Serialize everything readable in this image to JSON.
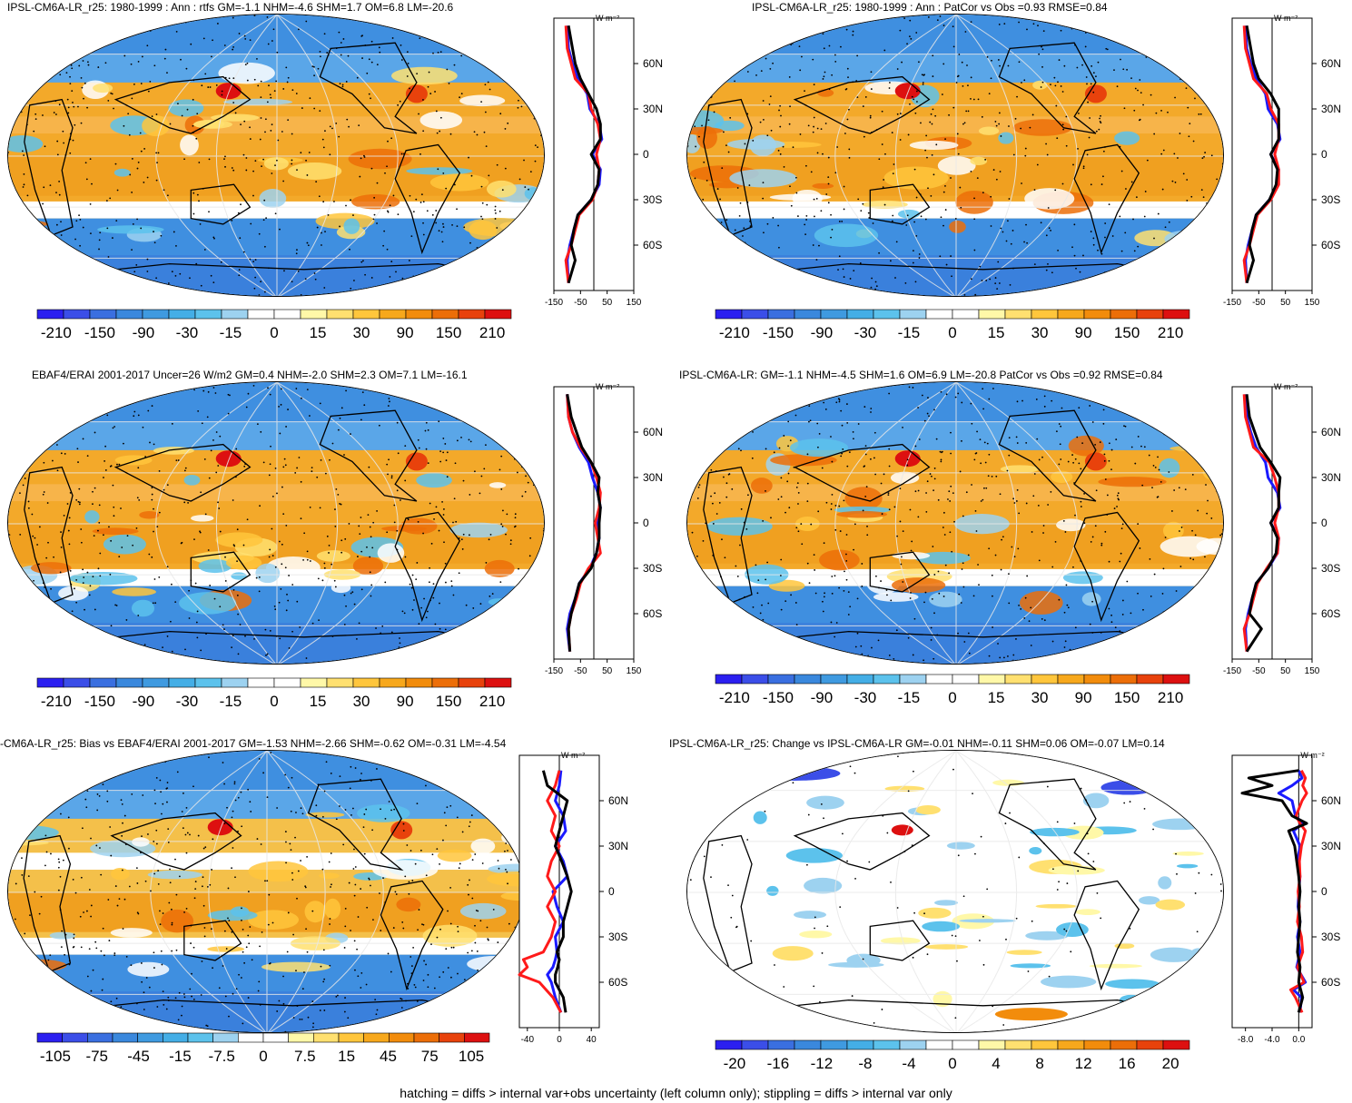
{
  "footer": "hatching = diffs > internal var+obs uncertainty (left column only); stippling = diffs > internal var only",
  "colors": {
    "cold": [
      "#2b1ff0",
      "#3b4ee8",
      "#3a6fe0",
      "#3a88dd",
      "#3f9ae0",
      "#44aee6",
      "#5cc2ec",
      "#9dd2f0",
      "#ffffff"
    ],
    "warm": [
      "#ffffff",
      "#fff8a8",
      "#ffe070",
      "#ffc63c",
      "#f7a81c",
      "#f28c0c",
      "#ec6e08",
      "#e8420c",
      "#dd1010"
    ],
    "model_line": "#000000",
    "obs_line": "#ff1a1a",
    "alt_line": "#1a1aff"
  },
  "panels": [
    {
      "id": "p1",
      "title": "IPSL-CM6A-LR_r25: 1980-1999 : Ann : rtfs GM=-1.1 NHM=-4.6 SHM=1.7 OM=6.8 LM=-20.6",
      "unit": "W m⁻²",
      "cbar_labels": [
        "-210",
        "-150",
        "-90",
        "-30",
        "-15",
        "0",
        "15",
        "30",
        "90",
        "150",
        "210"
      ],
      "profile_xticks": [
        "-150",
        "-50",
        "50",
        "150"
      ],
      "profile_xlim": [
        -150,
        150
      ],
      "lat_labels": [
        "60N",
        "30N",
        "0",
        "30S",
        "60S"
      ],
      "chart_data": {
        "type": "line",
        "x_quantity": "zonal mean (W m-2)",
        "lat": [
          -85,
          -70,
          -60,
          -50,
          -40,
          -30,
          -20,
          -10,
          0,
          10,
          20,
          30,
          40,
          50,
          60,
          70,
          85
        ],
        "series": [
          {
            "values": [
              -95,
              -100,
              -90,
              -75,
              -60,
              -10,
              20,
              25,
              -5,
              30,
              20,
              -15,
              -25,
              -60,
              -80,
              -95,
              -100
            ]
          },
          {
            "values": [
              -95,
              -105,
              -85,
              -70,
              -55,
              -5,
              15,
              20,
              10,
              25,
              15,
              -10,
              -20,
              -70,
              -85,
              -100,
              -105
            ]
          },
          {
            "values": [
              -95,
              -70,
              -85,
              -75,
              -60,
              -10,
              15,
              20,
              -10,
              25,
              25,
              10,
              -20,
              -50,
              -70,
              -80,
              -95
            ]
          }
        ]
      }
    },
    {
      "id": "p2",
      "title": "IPSL-CM6A-LR_r25: 1980-1999 : Ann : PatCor vs Obs =0.93 RMSE=0.84",
      "unit": "W m⁻²",
      "cbar_labels": [
        "-210",
        "-150",
        "-90",
        "-30",
        "-15",
        "0",
        "15",
        "30",
        "90",
        "150",
        "210"
      ],
      "profile_xticks": [
        "-150",
        "-50",
        "50",
        "150"
      ],
      "profile_xlim": [
        -150,
        150
      ],
      "lat_labels": [
        "60N",
        "30N",
        "0",
        "30S",
        "60S"
      ],
      "chart_data": {
        "type": "line",
        "x_quantity": "zonal mean (W m-2)",
        "lat": [
          -85,
          -70,
          -60,
          -50,
          -40,
          -30,
          -20,
          -10,
          0,
          10,
          20,
          30,
          40,
          50,
          60,
          70,
          85
        ],
        "series": [
          {
            "values": [
              -95,
              -100,
              -90,
              -75,
              -60,
              -10,
              20,
              25,
              -5,
              30,
              20,
              -15,
              -25,
              -60,
              -80,
              -95,
              -100
            ]
          },
          {
            "values": [
              -95,
              -105,
              -85,
              -70,
              -55,
              -5,
              25,
              25,
              10,
              25,
              25,
              -5,
              -20,
              -70,
              -85,
              -100,
              -105
            ]
          },
          {
            "values": [
              -95,
              -70,
              -85,
              -75,
              -60,
              -10,
              15,
              20,
              -5,
              25,
              25,
              25,
              -5,
              -50,
              -70,
              -80,
              -95
            ]
          }
        ]
      }
    },
    {
      "id": "p3",
      "title": "EBAF4/ERAI 2001-2017 Uncer=26 W/m2 GM=0.4 NHM=-2.0 SHM=2.3 OM=7.1 LM=-16.1",
      "unit": "W m⁻²",
      "cbar_labels": [
        "-210",
        "-150",
        "-90",
        "-30",
        "-15",
        "0",
        "15",
        "30",
        "90",
        "150",
        "210"
      ],
      "profile_xticks": [
        "-150",
        "-50",
        "50",
        "150"
      ],
      "profile_xlim": [
        -150,
        150
      ],
      "lat_labels": [
        "60N",
        "30N",
        "0",
        "30S",
        "60S"
      ],
      "chart_data": {
        "type": "line",
        "x_quantity": "zonal mean (W m-2)",
        "lat": [
          -85,
          -70,
          -60,
          -50,
          -40,
          -30,
          -20,
          -10,
          0,
          10,
          20,
          30,
          40,
          50,
          60,
          70,
          85
        ],
        "series": [
          {
            "values": [
              -90,
              -100,
              -90,
              -70,
              -55,
              -15,
              10,
              20,
              10,
              25,
              15,
              -5,
              -20,
              -55,
              -80,
              -95,
              -100
            ]
          },
          {
            "values": [
              -90,
              -95,
              -85,
              -65,
              -50,
              -20,
              25,
              15,
              5,
              20,
              25,
              10,
              -10,
              -50,
              -80,
              -95,
              -100
            ]
          },
          {
            "values": [
              -90,
              -95,
              -85,
              -70,
              -55,
              -10,
              10,
              20,
              20,
              25,
              15,
              20,
              -10,
              -45,
              -65,
              -85,
              -100
            ]
          }
        ]
      }
    },
    {
      "id": "p4",
      "title": "IPSL-CM6A-LR: GM=-1.1 NHM=-4.5 SHM=1.6 OM=6.9 LM=-20.8 PatCor vs Obs =0.92 RMSE=0.84",
      "unit": "W m⁻²",
      "cbar_labels": [
        "-210",
        "-150",
        "-90",
        "-30",
        "-15",
        "0",
        "15",
        "30",
        "90",
        "150",
        "210"
      ],
      "profile_xticks": [
        "-150",
        "-50",
        "50",
        "150"
      ],
      "profile_xlim": [
        -150,
        150
      ],
      "lat_labels": [
        "60N",
        "30N",
        "0",
        "30S",
        "60S"
      ],
      "chart_data": {
        "type": "line",
        "x_quantity": "zonal mean (W m-2)",
        "lat": [
          -85,
          -70,
          -60,
          -50,
          -40,
          -30,
          -20,
          -10,
          0,
          10,
          20,
          30,
          40,
          50,
          60,
          70,
          85
        ],
        "series": [
          {
            "values": [
              -95,
              -100,
              -90,
              -75,
              -60,
              -15,
              20,
              25,
              -5,
              30,
              20,
              -15,
              -25,
              -60,
              -80,
              -95,
              -100
            ]
          },
          {
            "values": [
              -95,
              -105,
              -85,
              -70,
              -55,
              -20,
              20,
              25,
              10,
              25,
              25,
              10,
              -10,
              -70,
              -85,
              -100,
              -105
            ]
          },
          {
            "values": [
              -95,
              -40,
              -85,
              -75,
              -60,
              -15,
              15,
              20,
              -5,
              25,
              25,
              30,
              -5,
              -45,
              -65,
              -85,
              -95
            ]
          }
        ]
      }
    },
    {
      "id": "p5",
      "title": "-CM6A-LR_r25: Bias vs EBAF4/ERAI 2001-2017 GM=-1.53 NHM=-2.66 SHM=-0.62 OM=-0.31 LM=-4.54",
      "unit": "W m⁻²",
      "cbar_labels": [
        "-105",
        "-75",
        "-45",
        "-15",
        "-7.5",
        "0",
        "7.5",
        "15",
        "45",
        "75",
        "105"
      ],
      "profile_xticks": [
        "-40",
        "0",
        "40"
      ],
      "profile_xlim": [
        -50,
        50
      ],
      "lat_labels": [
        "60N",
        "30N",
        "0",
        "30S",
        "60S"
      ],
      "chart_data": {
        "type": "line",
        "x_quantity": "zonal mean bias (W m-2)",
        "lat": [
          -80,
          -70,
          -60,
          -55,
          -50,
          -45,
          -40,
          -30,
          -20,
          -10,
          0,
          10,
          20,
          30,
          40,
          50,
          60,
          70,
          80
        ],
        "series": [
          {
            "values": [
              2,
              -5,
              -10,
              -15,
              -8,
              -5,
              -3,
              -5,
              5,
              -3,
              -8,
              10,
              5,
              -5,
              8,
              5,
              -5,
              0,
              2
            ]
          },
          {
            "values": [
              2,
              -8,
              -25,
              -50,
              -40,
              -45,
              -20,
              -10,
              -5,
              -15,
              -5,
              -15,
              -10,
              0,
              -10,
              -5,
              -15,
              -5,
              0
            ]
          },
          {
            "values": [
              8,
              5,
              -5,
              -5,
              -2,
              0,
              -3,
              5,
              5,
              10,
              15,
              10,
              3,
              -5,
              0,
              5,
              10,
              -15,
              -20
            ]
          }
        ]
      }
    },
    {
      "id": "p6",
      "title": "IPSL-CM6A-LR_r25: Change vs IPSL-CM6A-LR GM=-0.01 NHM=-0.11 SHM=0.06 OM=-0.07 LM=0.14",
      "unit": "W m⁻²",
      "cbar_labels": [
        "-20",
        "-16",
        "-12",
        "-8",
        "-4",
        "0",
        "4",
        "8",
        "12",
        "16",
        "20"
      ],
      "profile_xticks": [
        "-8.0",
        "-4.0",
        "0.0"
      ],
      "profile_xlim": [
        -10,
        2
      ],
      "lat_labels": [
        "60N",
        "30N",
        "0",
        "30S",
        "60S"
      ],
      "chart_data": {
        "type": "line",
        "x_quantity": "zonal mean change (W m-2)",
        "lat": [
          -80,
          -70,
          -65,
          -60,
          -50,
          -40,
          -30,
          -20,
          -10,
          0,
          10,
          20,
          30,
          40,
          45,
          50,
          60,
          65,
          70,
          75,
          80
        ],
        "series": [
          {
            "values": [
              0.2,
              0.4,
              -0.8,
              1.0,
              -0.3,
              0.2,
              -0.2,
              0.2,
              -0.1,
              0.0,
              0.2,
              -0.2,
              0.2,
              -0.8,
              0.6,
              -0.5,
              -1.0,
              -3.0,
              -1.0,
              0.5,
              0.0
            ]
          },
          {
            "values": [
              0.5,
              -0.5,
              -1.2,
              0.8,
              -0.2,
              0.6,
              0.4,
              -0.2,
              0.1,
              -0.1,
              0.2,
              0.1,
              0.4,
              1.0,
              0.2,
              -0.4,
              0.5,
              1.2,
              0.6,
              1.0,
              0.4
            ]
          },
          {
            "values": [
              0.0,
              0.6,
              0.3,
              0.0,
              0.2,
              -0.2,
              0.0,
              0.2,
              0.0,
              0.2,
              0.0,
              -0.3,
              -0.6,
              -1.5,
              1.2,
              -1.0,
              -2.5,
              -8.5,
              -4.0,
              -7.5,
              0.0
            ]
          }
        ]
      }
    }
  ]
}
